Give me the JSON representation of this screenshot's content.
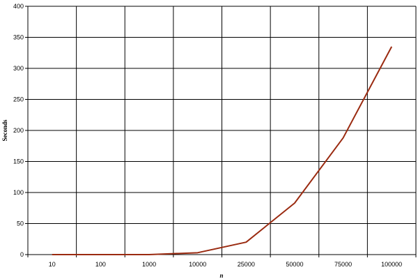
{
  "chart_data": {
    "type": "line",
    "title": "",
    "xlabel": "n",
    "ylabel": "Seconds",
    "categories": [
      "10",
      "100",
      "1000",
      "10000",
      "25000",
      "50000",
      "75000",
      "100000"
    ],
    "series": [
      {
        "values": [
          0,
          0,
          0,
          3,
          20,
          83,
          188,
          335
        ]
      }
    ],
    "ylim": [
      0,
      400
    ],
    "yticks": [
      0,
      50,
      100,
      150,
      200,
      250,
      300,
      350,
      400
    ],
    "grid": true,
    "line_color": "#9a2a10"
  }
}
